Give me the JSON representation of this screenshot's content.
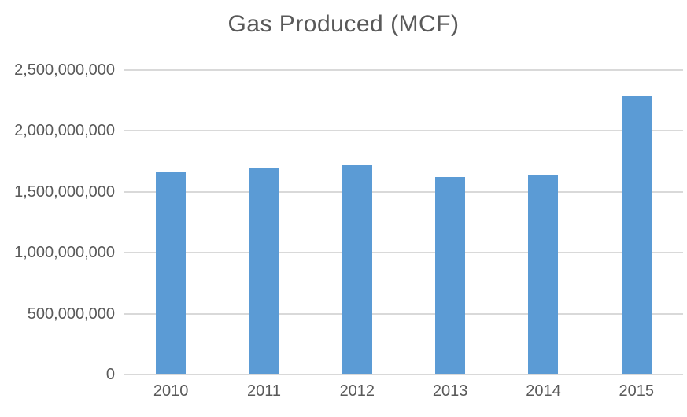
{
  "chart_data": {
    "type": "bar",
    "title": "Gas Produced (MCF)",
    "categories": [
      "2010",
      "2011",
      "2012",
      "2013",
      "2014",
      "2015"
    ],
    "values": [
      1660000000,
      1700000000,
      1720000000,
      1620000000,
      1640000000,
      2290000000
    ],
    "series_name": "Gas Produced (MCF)",
    "xlabel": "",
    "ylabel": "",
    "ylim": [
      0,
      2500000000
    ],
    "ytick_interval": 500000000,
    "yticks": [
      0,
      500000000,
      1000000000,
      1500000000,
      2000000000,
      2500000000
    ],
    "ytick_labels": [
      "0",
      "500,000,000",
      "1,000,000,000",
      "1,500,000,000",
      "2,000,000,000",
      "2,500,000,000"
    ],
    "grid": true,
    "legend": "none",
    "colors": {
      "bar": "#5B9BD5",
      "gridline": "#D9D9D9",
      "axis_line": "#D9D9D9",
      "text": "#595959",
      "background": "#FFFFFF"
    }
  }
}
